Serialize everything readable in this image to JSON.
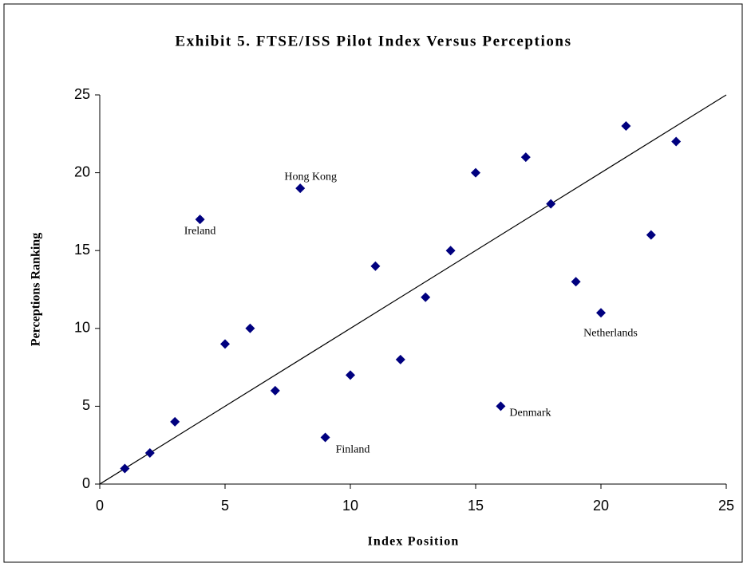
{
  "chart_data": {
    "type": "scatter",
    "title": "Exhibit 5. FTSE/ISS Pilot Index Versus Perceptions",
    "x_label": "Index Position",
    "y_label": "Perceptions Ranking",
    "series": [
      {
        "color": "#00007f",
        "x": [
          1,
          2,
          3,
          4,
          5,
          6,
          7,
          8,
          9,
          10,
          11,
          12,
          13,
          14,
          15,
          16,
          17,
          18,
          19,
          20,
          21,
          22,
          23
        ],
        "values": [
          1,
          2,
          4,
          17,
          9,
          10,
          6,
          19,
          3,
          7,
          14,
          8,
          12,
          15,
          20,
          5,
          21,
          18,
          13,
          11,
          23,
          16,
          22
        ]
      }
    ],
    "reference_line": {
      "x": [
        0,
        25
      ],
      "y": [
        0,
        25
      ]
    },
    "annotations": [
      {
        "text": "Hong Kong",
        "x": 8,
        "y": 19
      },
      {
        "text": "Ireland",
        "x": 4,
        "y": 17
      },
      {
        "text": "Finland",
        "x": 9,
        "y": 3
      },
      {
        "text": "Denmark",
        "x": 16,
        "y": 5
      },
      {
        "text": "Netherlands",
        "x": 20,
        "y": 11
      }
    ],
    "xlim": [
      0,
      25
    ],
    "xticks": [
      0,
      5,
      10,
      15,
      20,
      25
    ],
    "ylim": [
      0,
      25
    ],
    "yticks": [
      0,
      5,
      10,
      15,
      20,
      25
    ]
  }
}
